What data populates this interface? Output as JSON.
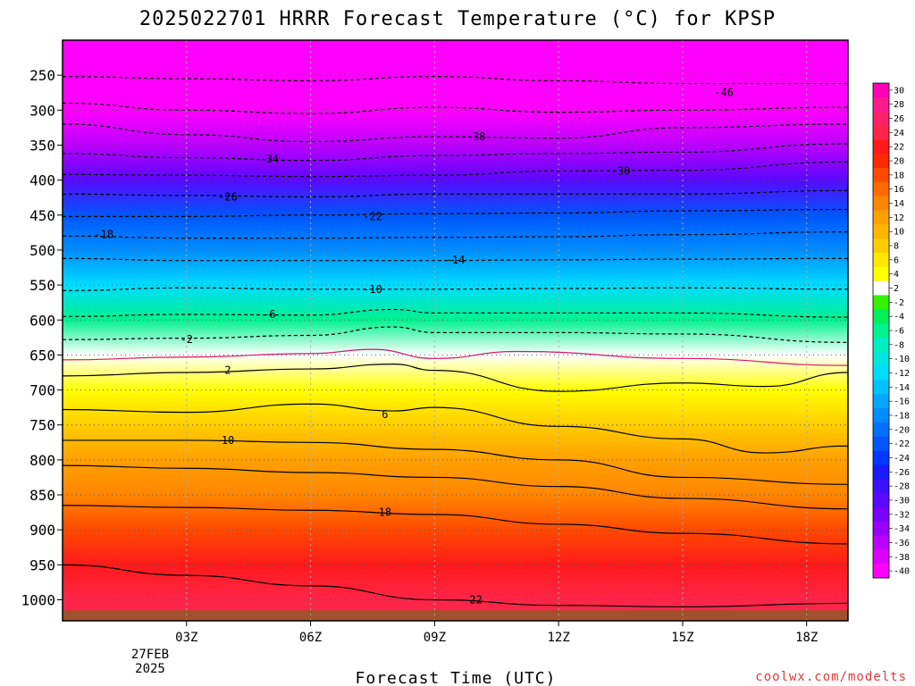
{
  "chart_data": {
    "type": "heatmap",
    "title": "2025022701 HRRR Forecast Temperature (°C) for KPSP",
    "xlabel": "Forecast Time (UTC)",
    "ylabel": "",
    "x_ticks": [
      "03Z",
      "06Z",
      "09Z",
      "12Z",
      "15Z",
      "18Z"
    ],
    "x_date_label": [
      "27FEB",
      "2025"
    ],
    "y_ticks": [
      250,
      300,
      350,
      400,
      450,
      500,
      550,
      600,
      650,
      700,
      750,
      800,
      850,
      900,
      950,
      1000
    ],
    "x_range_hours": [
      0,
      19
    ],
    "y_range_hpa": [
      200,
      1030
    ],
    "surface_pressure_hpa": 1015,
    "temperature_by_pressure": [
      {
        "p": 200,
        "t": -56
      },
      {
        "p": 250,
        "t": -50
      },
      {
        "p": 300,
        "t": -44
      },
      {
        "p": 350,
        "t": -36
      },
      {
        "p": 400,
        "t": -30
      },
      {
        "p": 450,
        "t": -23
      },
      {
        "p": 500,
        "t": -18
      },
      {
        "p": 550,
        "t": -12
      },
      {
        "p": 600,
        "t": -6
      },
      {
        "p": 650,
        "t": -0.5
      },
      {
        "p": 700,
        "t": 4
      },
      {
        "p": 750,
        "t": 7
      },
      {
        "p": 800,
        "t": 11
      },
      {
        "p": 850,
        "t": 14
      },
      {
        "p": 900,
        "t": 18
      },
      {
        "p": 950,
        "t": 21
      },
      {
        "p": 1000,
        "t": 24
      }
    ],
    "contours": [
      {
        "value": "-46",
        "dashed": true,
        "points": [
          [
            0,
            252
          ],
          [
            3,
            255
          ],
          [
            6,
            258
          ],
          [
            9,
            252
          ],
          [
            12,
            258
          ],
          [
            15,
            262
          ],
          [
            19,
            262
          ]
        ],
        "label_at": [
          16,
          275
        ]
      },
      {
        "value": "",
        "dashed": true,
        "points": [
          [
            0,
            290
          ],
          [
            3,
            300
          ],
          [
            6,
            305
          ],
          [
            9,
            296
          ],
          [
            12,
            303
          ],
          [
            15,
            300
          ],
          [
            19,
            296
          ]
        ]
      },
      {
        "value": "-38",
        "dashed": true,
        "points": [
          [
            0,
            320
          ],
          [
            3,
            335
          ],
          [
            6,
            345
          ],
          [
            9,
            338
          ],
          [
            12,
            340
          ],
          [
            15,
            325
          ],
          [
            19,
            320
          ]
        ],
        "label_at": [
          10,
          338
        ]
      },
      {
        "value": "-34",
        "dashed": true,
        "points": [
          [
            0,
            362
          ],
          [
            3,
            368
          ],
          [
            6,
            372
          ],
          [
            9,
            365
          ],
          [
            12,
            362
          ],
          [
            15,
            360
          ],
          [
            19,
            348
          ]
        ],
        "label_at": [
          5,
          370
        ]
      },
      {
        "value": "-30",
        "dashed": true,
        "points": [
          [
            0,
            392
          ],
          [
            3,
            393
          ],
          [
            6,
            395
          ],
          [
            9,
            393
          ],
          [
            12,
            387
          ],
          [
            15,
            386
          ],
          [
            19,
            374
          ]
        ],
        "label_at": [
          13.5,
          387
        ]
      },
      {
        "value": "-26",
        "dashed": true,
        "points": [
          [
            0,
            420
          ],
          [
            3,
            422
          ],
          [
            6,
            424
          ],
          [
            9,
            420
          ],
          [
            12,
            420
          ],
          [
            15,
            420
          ],
          [
            19,
            415
          ]
        ],
        "label_at": [
          4,
          424
        ]
      },
      {
        "value": "-22",
        "dashed": true,
        "points": [
          [
            0,
            452
          ],
          [
            3,
            452
          ],
          [
            6,
            450
          ],
          [
            9,
            448
          ],
          [
            12,
            447
          ],
          [
            15,
            444
          ],
          [
            19,
            442
          ]
        ],
        "label_at": [
          7.5,
          452
        ]
      },
      {
        "value": "-18",
        "dashed": true,
        "points": [
          [
            0,
            480
          ],
          [
            3,
            483
          ],
          [
            6,
            483
          ],
          [
            9,
            482
          ],
          [
            12,
            481
          ],
          [
            15,
            478
          ],
          [
            19,
            474
          ]
        ],
        "label_at": [
          1,
          478
        ]
      },
      {
        "value": "-14",
        "dashed": true,
        "points": [
          [
            0,
            512
          ],
          [
            3,
            515
          ],
          [
            6,
            515
          ],
          [
            9,
            515
          ],
          [
            12,
            514
          ],
          [
            15,
            513
          ],
          [
            19,
            512
          ]
        ],
        "label_at": [
          9.5,
          514
        ]
      },
      {
        "value": "-10",
        "dashed": true,
        "points": [
          [
            0,
            558
          ],
          [
            3,
            554
          ],
          [
            6,
            556
          ],
          [
            9,
            556
          ],
          [
            12,
            555
          ],
          [
            15,
            554
          ],
          [
            19,
            556
          ]
        ],
        "label_at": [
          7.5,
          556
        ]
      },
      {
        "value": "-6",
        "dashed": true,
        "points": [
          [
            0,
            595
          ],
          [
            3,
            592
          ],
          [
            6,
            593
          ],
          [
            8,
            585
          ],
          [
            9,
            590
          ],
          [
            12,
            590
          ],
          [
            15,
            590
          ],
          [
            19,
            596
          ]
        ],
        "label_at": [
          5,
          592
        ]
      },
      {
        "value": "-2",
        "dashed": true,
        "points": [
          [
            0,
            628
          ],
          [
            3,
            626
          ],
          [
            6,
            622
          ],
          [
            8,
            610
          ],
          [
            9,
            618
          ],
          [
            12,
            618
          ],
          [
            15,
            620
          ],
          [
            19,
            632
          ]
        ],
        "label_at": [
          3,
          628
        ]
      },
      {
        "value": "0",
        "color": "#d4186c",
        "dashed": false,
        "points": [
          [
            0,
            657
          ],
          [
            3,
            653
          ],
          [
            6,
            648
          ],
          [
            7.5,
            642
          ],
          [
            9,
            655
          ],
          [
            11,
            645
          ],
          [
            15,
            655
          ],
          [
            19,
            665
          ]
        ]
      },
      {
        "value": "2",
        "dashed": false,
        "points": [
          [
            0,
            680
          ],
          [
            3,
            675
          ],
          [
            6,
            670
          ],
          [
            8,
            663
          ],
          [
            9,
            672
          ],
          [
            12,
            702
          ],
          [
            15,
            690
          ],
          [
            17,
            695
          ],
          [
            19,
            675
          ]
        ],
        "label_at": [
          4,
          672
        ]
      },
      {
        "value": "6",
        "dashed": false,
        "points": [
          [
            0,
            728
          ],
          [
            3,
            732
          ],
          [
            6,
            720
          ],
          [
            8,
            730
          ],
          [
            9,
            725
          ],
          [
            12,
            752
          ],
          [
            15,
            770
          ],
          [
            17,
            790
          ],
          [
            19,
            780
          ]
        ],
        "label_at": [
          7.8,
          735
        ]
      },
      {
        "value": "10",
        "dashed": false,
        "points": [
          [
            0,
            772
          ],
          [
            3,
            772
          ],
          [
            6,
            775
          ],
          [
            9,
            785
          ],
          [
            12,
            800
          ],
          [
            15,
            825
          ],
          [
            19,
            835
          ]
        ],
        "label_at": [
          4,
          772
        ]
      },
      {
        "value": "14",
        "dashed": false,
        "points": [
          [
            0,
            808
          ],
          [
            3,
            812
          ],
          [
            6,
            818
          ],
          [
            9,
            825
          ],
          [
            12,
            838
          ],
          [
            15,
            855
          ],
          [
            19,
            870
          ]
        ]
      },
      {
        "value": "18",
        "dashed": false,
        "points": [
          [
            0,
            865
          ],
          [
            3,
            868
          ],
          [
            6,
            872
          ],
          [
            9,
            878
          ],
          [
            12,
            892
          ],
          [
            15,
            905
          ],
          [
            19,
            920
          ]
        ],
        "label_at": [
          7.8,
          875
        ]
      },
      {
        "value": "22",
        "dashed": false,
        "points": [
          [
            0,
            950
          ],
          [
            3,
            965
          ],
          [
            6,
            980
          ],
          [
            9,
            1000
          ],
          [
            12,
            1008
          ],
          [
            15,
            1010
          ],
          [
            19,
            1005
          ]
        ],
        "label_at": [
          10,
          1000
        ]
      }
    ],
    "colorbar": {
      "labels": [
        "30",
        "28",
        "26",
        "24",
        "22",
        "20",
        "18",
        "16",
        "14",
        "12",
        "10",
        "8",
        "6",
        "4",
        "2",
        "-2",
        "-4",
        "-6",
        "-8",
        "-10",
        "-12",
        "-14",
        "-16",
        "-18",
        "-20",
        "-22",
        "-24",
        "-26",
        "-28",
        "-30",
        "-32",
        "-34",
        "-36",
        "-38",
        "-40"
      ],
      "colors": [
        "#ff00b5",
        "#ff1a8f",
        "#ff1f6a",
        "#ff2549",
        "#ff1a1a",
        "#ff2a00",
        "#ff4a00",
        "#ff6a00",
        "#ff8600",
        "#ffa000",
        "#ffb600",
        "#ffcd00",
        "#ffe800",
        "#ffff00",
        "#ffffff",
        "#33f300",
        "#00ef5a",
        "#00f28e",
        "#00efbe",
        "#00e8dc",
        "#00dcff",
        "#00c2ff",
        "#00a8ff",
        "#008dff",
        "#0070ff",
        "#0055ff",
        "#0038ff",
        "#1a1aff",
        "#3a10ff",
        "#5a08ff",
        "#7a00ff",
        "#9a00ff",
        "#bb00ff",
        "#dd00ff",
        "#ff00ff"
      ]
    }
  },
  "credit": "coolwx.com/modelts"
}
